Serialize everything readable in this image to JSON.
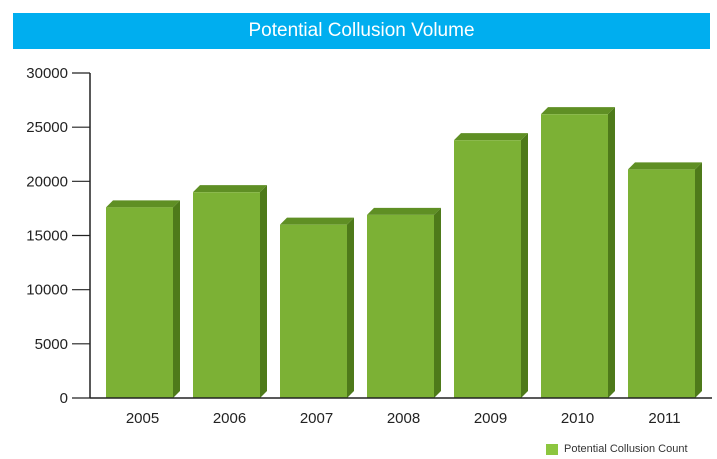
{
  "header": {
    "title": "Potential Collusion Volume",
    "bg_color": "#00aeef"
  },
  "chart_data": {
    "type": "bar",
    "title": "Potential Collusion Volume",
    "categories": [
      "2005",
      "2006",
      "2007",
      "2008",
      "2009",
      "2010",
      "2011"
    ],
    "series": [
      {
        "name": "Potential Collusion Count",
        "values": [
          17600,
          19000,
          16000,
          16900,
          23800,
          26200,
          21100
        ]
      }
    ],
    "ylim": [
      0,
      30000
    ],
    "yticks": [
      0,
      5000,
      10000,
      15000,
      20000,
      25000,
      30000
    ],
    "grid": false,
    "legend": "bottom-right",
    "bar_style": "3d",
    "colors": {
      "bar_front": "#7cb135",
      "bar_side": "#4e7a1a",
      "bar_top": "#5f8f24",
      "axis": "#222222"
    }
  },
  "legend": {
    "label": "Potential Collusion Count",
    "color": "#8cc63f"
  }
}
